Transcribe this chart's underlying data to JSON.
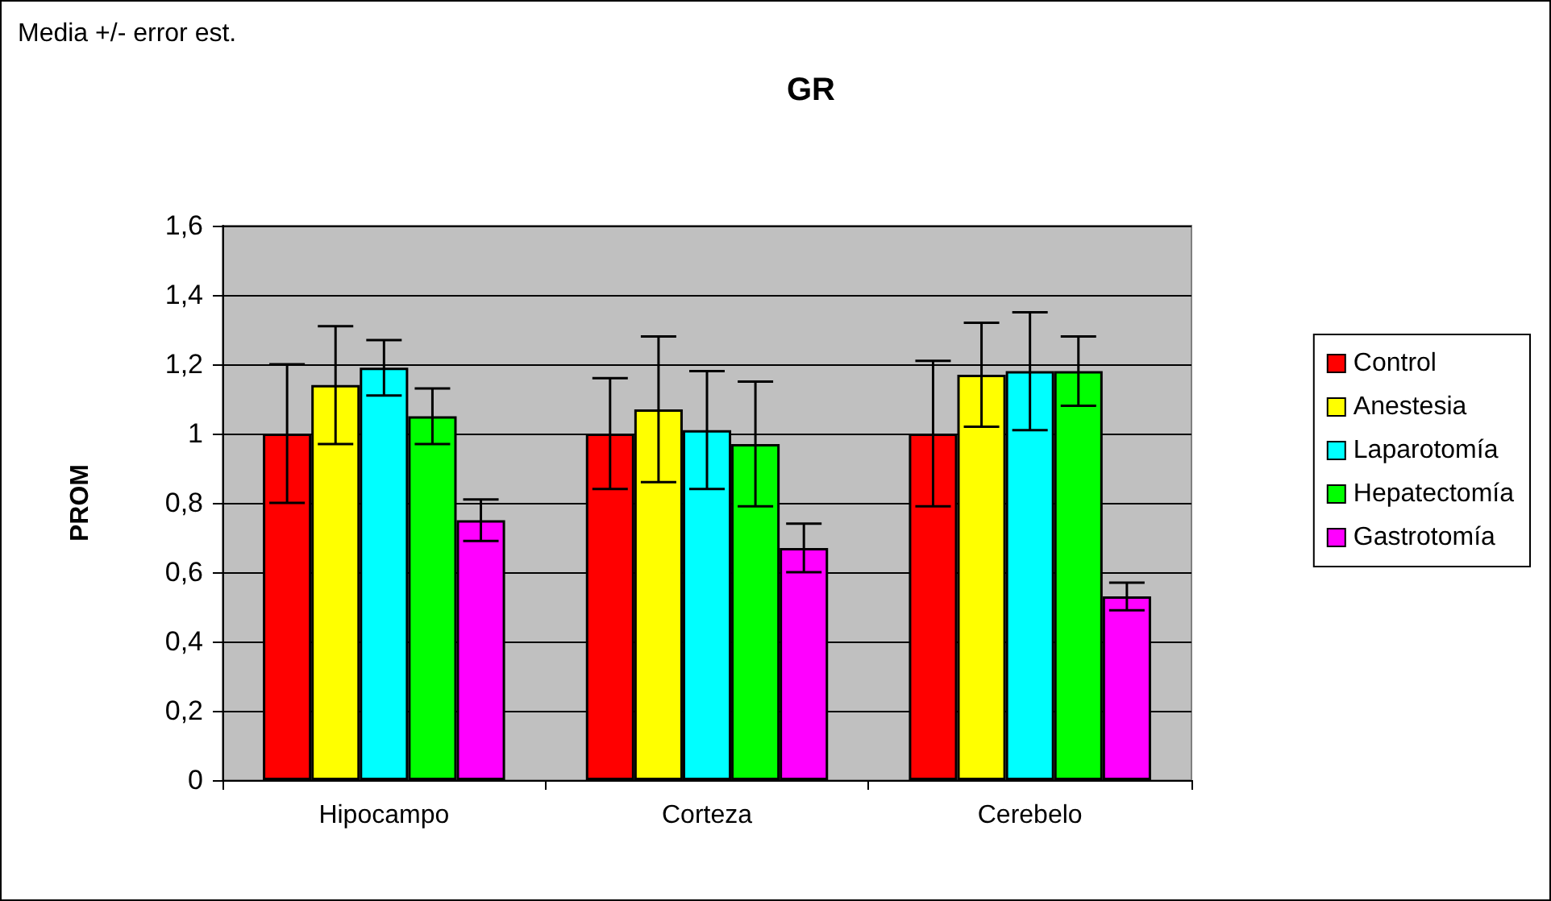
{
  "chart_data": {
    "type": "bar",
    "title": "GR",
    "ylabel": "PROM",
    "annotations": [
      "Media +/- error est."
    ],
    "categories": [
      "Hipocampo",
      "Corteza",
      "Cerebelo"
    ],
    "series": [
      {
        "name": "Control",
        "color": "#ff0000",
        "values": [
          1.0,
          1.0,
          1.0
        ],
        "errors": [
          0.2,
          0.16,
          0.21
        ]
      },
      {
        "name": "Anestesia",
        "color": "#ffff00",
        "values": [
          1.14,
          1.07,
          1.17
        ],
        "errors": [
          0.17,
          0.21,
          0.15
        ]
      },
      {
        "name": "Laparotomía",
        "color": "#00ffff",
        "values": [
          1.19,
          1.01,
          1.18
        ],
        "errors": [
          0.08,
          0.17,
          0.17
        ]
      },
      {
        "name": "Hepatectomía",
        "color": "#00ff00",
        "values": [
          1.05,
          0.97,
          1.18
        ],
        "errors": [
          0.08,
          0.18,
          0.1
        ]
      },
      {
        "name": "Gastrotomía",
        "color": "#ff00ff",
        "values": [
          0.75,
          0.67,
          0.53
        ],
        "errors": [
          0.06,
          0.07,
          0.04
        ]
      }
    ],
    "ylim": [
      0,
      1.6
    ],
    "yticks": [
      0,
      {
        "value": 0.2,
        "label": "0,2"
      },
      {
        "value": 0.4,
        "label": "0,4"
      },
      {
        "value": 0.6,
        "label": "0,6"
      },
      {
        "value": 0.8,
        "label": "0,8"
      },
      1,
      {
        "value": 1.2,
        "label": "1,2"
      },
      {
        "value": 1.4,
        "label": "1,4"
      },
      {
        "value": 1.6,
        "label": "1,6"
      }
    ],
    "grid": "y",
    "legend": "right"
  }
}
